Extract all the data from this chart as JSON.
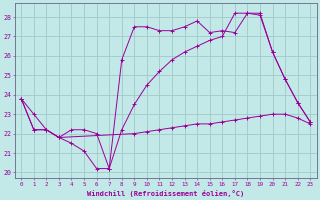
{
  "xlabel": "Windchill (Refroidissement éolien,°C)",
  "bg_color": "#c2e8e8",
  "line_color": "#990099",
  "grid_color": "#a0c8c8",
  "xlim": [
    -0.5,
    23.5
  ],
  "ylim": [
    19.7,
    28.7
  ],
  "yticks": [
    20,
    21,
    22,
    23,
    24,
    25,
    26,
    27,
    28
  ],
  "xticks": [
    0,
    1,
    2,
    3,
    4,
    5,
    6,
    7,
    8,
    9,
    10,
    11,
    12,
    13,
    14,
    15,
    16,
    17,
    18,
    19,
    20,
    21,
    22,
    23
  ],
  "series1_x": [
    0,
    1,
    2,
    3,
    4,
    5,
    6,
    7,
    8,
    9,
    10,
    11,
    12,
    13,
    14,
    15,
    16,
    17,
    18,
    19,
    20,
    21,
    22,
    23
  ],
  "series1_y": [
    23.8,
    23.0,
    22.2,
    21.8,
    21.5,
    21.1,
    20.2,
    20.2,
    25.8,
    27.5,
    27.5,
    27.3,
    27.3,
    27.5,
    27.8,
    27.2,
    27.3,
    27.2,
    28.2,
    28.1,
    26.2,
    24.8,
    23.6,
    22.6
  ],
  "series2_x": [
    0,
    1,
    2,
    3,
    9,
    10,
    11,
    12,
    13,
    14,
    15,
    16,
    17,
    18,
    19,
    20,
    21,
    22,
    23
  ],
  "series2_y": [
    23.8,
    22.2,
    22.2,
    21.8,
    22.0,
    22.1,
    22.2,
    22.3,
    22.4,
    22.5,
    22.5,
    22.6,
    22.7,
    22.8,
    22.9,
    23.0,
    23.0,
    22.8,
    22.5
  ],
  "series3_x": [
    0,
    1,
    2,
    3,
    4,
    5,
    6,
    7,
    8,
    9,
    10,
    11,
    12,
    13,
    14,
    15,
    16,
    17,
    18,
    19,
    20,
    21,
    22,
    23
  ],
  "series3_y": [
    23.8,
    22.2,
    22.2,
    21.8,
    22.2,
    22.2,
    22.0,
    20.2,
    22.2,
    23.5,
    24.5,
    25.2,
    25.8,
    26.2,
    26.5,
    26.8,
    27.0,
    28.2,
    28.2,
    28.2,
    26.2,
    24.8,
    23.6,
    22.6
  ]
}
